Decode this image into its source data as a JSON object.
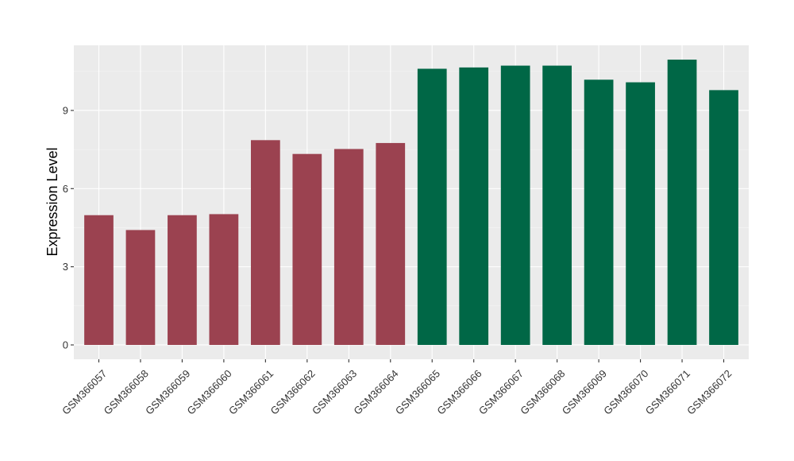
{
  "chart_data": {
    "type": "bar",
    "title": "",
    "xlabel": "",
    "ylabel": "Expression Level",
    "ylim": [
      -0.55,
      11.5
    ],
    "yticks": [
      0,
      3,
      6,
      9
    ],
    "grid": true,
    "background": "#EBEBEB",
    "categories": [
      "GSM366057",
      "GSM366058",
      "GSM366059",
      "GSM366060",
      "GSM366061",
      "GSM366062",
      "GSM366063",
      "GSM366064",
      "GSM366065",
      "GSM366066",
      "GSM366067",
      "GSM366068",
      "GSM366069",
      "GSM366070",
      "GSM366071",
      "GSM366072"
    ],
    "values": [
      4.98,
      4.41,
      4.98,
      5.02,
      7.86,
      7.33,
      7.52,
      7.75,
      10.6,
      10.65,
      10.72,
      10.72,
      10.18,
      10.08,
      10.95,
      9.78
    ],
    "colors": [
      "#9B4250",
      "#9B4250",
      "#9B4250",
      "#9B4250",
      "#9B4250",
      "#9B4250",
      "#9B4250",
      "#9B4250",
      "#006746",
      "#006746",
      "#006746",
      "#006746",
      "#006746",
      "#006746",
      "#006746",
      "#006746"
    ]
  }
}
